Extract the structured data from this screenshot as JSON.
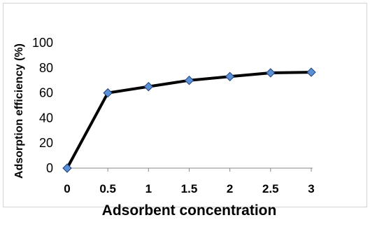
{
  "chart_data": {
    "type": "line",
    "title": "",
    "xlabel": "Adsorbent concentration",
    "ylabel": "Adsorption efficiency (%)",
    "x": [
      0,
      0.5,
      1,
      1.5,
      2,
      2.5,
      3
    ],
    "x_tick_labels": [
      "0",
      "0.5",
      "1",
      "1.5",
      "2",
      "2.5",
      "3"
    ],
    "y_tick_labels": [
      "0",
      "20",
      "40",
      "60",
      "80",
      "100"
    ],
    "y_ticks": [
      0,
      20,
      40,
      60,
      80,
      100
    ],
    "ylim": [
      0,
      100
    ],
    "grid": false,
    "legend": "none",
    "series": [
      {
        "values": [
          0,
          60,
          65,
          70,
          73,
          76,
          76.5
        ],
        "line_color": "#000000",
        "marker": "diamond",
        "marker_color": "#5b8fd6"
      }
    ]
  }
}
